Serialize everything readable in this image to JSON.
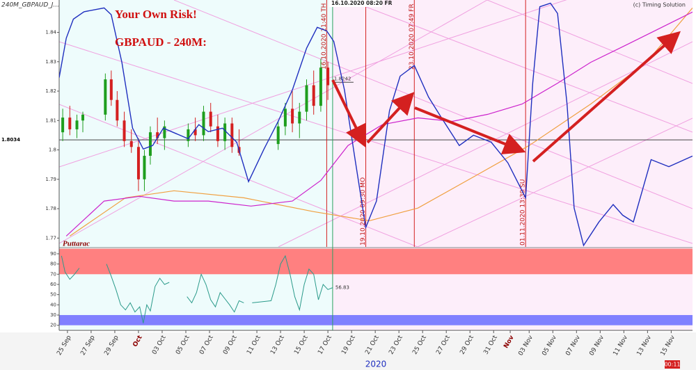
{
  "chart_data": {
    "type": "candlestick",
    "title": "240M_GBPAUD_J...",
    "cursor_label": "16.10.2020 08:20 FR",
    "cursor_x": 22.4,
    "copyright": "(c) Timing Solution",
    "notes": [
      "Your Own Risk!",
      "GBPAUD - 240M:",
      "Puttarac"
    ],
    "xlim": [
      -0.7,
      52.8
    ],
    "xticks": [
      {
        "value": 0,
        "label": "25 Sep"
      },
      {
        "value": 2,
        "label": "27 Sep"
      },
      {
        "value": 4,
        "label": "29 Sep"
      },
      {
        "value": 6,
        "label": "Oct"
      },
      {
        "value": 8,
        "label": "03 Oct"
      },
      {
        "value": 10,
        "label": "05 Oct"
      },
      {
        "value": 12,
        "label": "07 Oct"
      },
      {
        "value": 14,
        "label": "09 Oct"
      },
      {
        "value": 16,
        "label": "11 Oct"
      },
      {
        "value": 18,
        "label": "13 Oct"
      },
      {
        "value": 20,
        "label": "15 Oct"
      },
      {
        "value": 22,
        "label": "17 Oct"
      },
      {
        "value": 24,
        "label": "19 Oct"
      },
      {
        "value": 26,
        "label": "21 Oct"
      },
      {
        "value": 28,
        "label": "23 Oct"
      },
      {
        "value": 30,
        "label": "25 Oct"
      },
      {
        "value": 32,
        "label": "27 Oct"
      },
      {
        "value": 34,
        "label": "29 Oct"
      },
      {
        "value": 36,
        "label": "31 Oct"
      },
      {
        "value": 37.4,
        "label": "Nov"
      },
      {
        "value": 39,
        "label": "03 Nov"
      },
      {
        "value": 41,
        "label": "05 Nov"
      },
      {
        "value": 43,
        "label": "07 Nov"
      },
      {
        "value": 45,
        "label": "09 Nov"
      },
      {
        "value": 47,
        "label": "11 Nov"
      },
      {
        "value": 49,
        "label": "13 Nov"
      },
      {
        "value": 51,
        "label": "15 Nov"
      }
    ],
    "x_axis_year": "2020",
    "status_time": "00:11",
    "ylim": [
      1.767,
      1.851
    ],
    "yticks": [
      1.77,
      1.78,
      1.79,
      1.8,
      1.81,
      1.82,
      1.83,
      1.84
    ],
    "price_line": 1.8034,
    "price_marker": 1.8242,
    "candles": {
      "up_color": "#1e9e1e",
      "down_color": "#d42020",
      "x": [
        -0.4,
        0.2,
        0.8,
        1.3,
        3.2,
        3.7,
        4.2,
        4.8,
        5.4,
        6.0,
        6.5,
        7.0,
        7.6,
        8.2,
        10.2,
        10.8,
        11.5,
        12.1,
        12.7,
        13.3,
        13.9,
        14.5,
        17.8,
        18.4,
        19.0,
        19.6,
        20.2,
        20.8,
        21.4,
        22.0
      ],
      "open": [
        1.806,
        1.811,
        1.807,
        1.81,
        1.812,
        1.824,
        1.817,
        1.81,
        1.803,
        1.801,
        1.79,
        1.798,
        1.806,
        1.804,
        1.803,
        1.807,
        1.805,
        1.813,
        1.808,
        1.803,
        1.809,
        1.801,
        1.802,
        1.808,
        1.814,
        1.809,
        1.813,
        1.822,
        1.815,
        1.828
      ],
      "high": [
        1.814,
        1.815,
        1.812,
        1.813,
        1.826,
        1.827,
        1.82,
        1.813,
        1.807,
        1.804,
        1.8,
        1.808,
        1.811,
        1.81,
        1.809,
        1.811,
        1.815,
        1.816,
        1.812,
        1.811,
        1.811,
        1.807,
        1.81,
        1.816,
        1.82,
        1.816,
        1.824,
        1.827,
        1.831,
        1.83
      ],
      "low": [
        1.803,
        1.805,
        1.804,
        1.806,
        1.81,
        1.815,
        1.808,
        1.801,
        1.799,
        1.786,
        1.786,
        1.795,
        1.802,
        1.8,
        1.801,
        1.803,
        1.803,
        1.806,
        1.801,
        1.8,
        1.799,
        1.798,
        1.8,
        1.805,
        1.806,
        1.804,
        1.81,
        1.812,
        1.813,
        1.817
      ],
      "close": [
        1.811,
        1.807,
        1.81,
        1.812,
        1.824,
        1.817,
        1.81,
        1.803,
        1.801,
        1.79,
        1.798,
        1.806,
        1.804,
        1.808,
        1.807,
        1.805,
        1.813,
        1.808,
        1.803,
        1.809,
        1.801,
        1.799,
        1.808,
        1.814,
        1.809,
        1.813,
        1.822,
        1.815,
        1.828,
        1.822
      ]
    },
    "series": [
      {
        "color": "#1f2fbf",
        "x": [
          -0.7,
          -0.1,
          0.5,
          1.4,
          3.1,
          3.7,
          4.6,
          5.5,
          6.4,
          7.2,
          8.1,
          10.2,
          11.1,
          11.9,
          13.1,
          14.3,
          15.3,
          16.6,
          17.8,
          19.0,
          20.2,
          21.1,
          21.9,
          22.5,
          23.4,
          24.3,
          25.2,
          26.1,
          27.2,
          28.1,
          29.3,
          30.5,
          31.6,
          33.1,
          34.3,
          35.8,
          37.2,
          38.7,
          39.3,
          39.9,
          40.8,
          41.4,
          42.2,
          42.8,
          43.6,
          44.9,
          46.1,
          46.9,
          47.8,
          49.3,
          50.8,
          52.8
        ],
        "values": [
          1.8246,
          1.838,
          1.8445,
          1.847,
          1.8483,
          1.846,
          1.8298,
          1.8074,
          1.8003,
          1.8015,
          1.8074,
          1.8038,
          1.8086,
          1.8062,
          1.8074,
          1.8026,
          1.7892,
          1.8003,
          1.8097,
          1.8204,
          1.8346,
          1.8417,
          1.8405,
          1.8369,
          1.8204,
          1.7967,
          1.7736,
          1.7826,
          1.8133,
          1.8251,
          1.8287,
          1.818,
          1.8109,
          1.8015,
          1.805,
          1.8026,
          1.7956,
          1.7837,
          1.8227,
          1.8487,
          1.8499,
          1.8464,
          1.8156,
          1.7802,
          1.7675,
          1.7755,
          1.7814,
          1.7778,
          1.7755,
          1.7967,
          1.7943,
          1.7979
        ]
      },
      {
        "color": "#cc22cc",
        "x": [
          -0.1,
          3.1,
          6.1,
          9.0,
          11.9,
          15.5,
          19.0,
          21.4,
          23.7,
          26.6,
          29.6,
          32.5,
          35.5,
          38.4,
          41.4,
          44.2,
          47.2,
          50.2,
          52.8
        ],
        "values": [
          1.7707,
          1.7826,
          1.7842,
          1.7826,
          1.7826,
          1.7809,
          1.7826,
          1.7896,
          1.8015,
          1.8086,
          1.8109,
          1.8097,
          1.8121,
          1.8156,
          1.8227,
          1.8298,
          1.8357,
          1.8417,
          1.8469
        ]
      },
      {
        "color": "#f0a040",
        "x": [
          0.2,
          4.9,
          9.0,
          14.9,
          20.8,
          25.5,
          29.6,
          34.3,
          39.0,
          44.2,
          48.9,
          52.8
        ],
        "values": [
          1.7707,
          1.7837,
          1.7861,
          1.7837,
          1.779,
          1.7759,
          1.7802,
          1.7908,
          1.8015,
          1.8156,
          1.8298,
          1.8483
        ]
      }
    ],
    "annotations": [
      {
        "x": 21.9,
        "label": "16.10.2020  21:40 TH"
      },
      {
        "x": 25.2,
        "label": "19.10.2020  09:30 MO"
      },
      {
        "x": 29.3,
        "label": "23.10.2020  07:49 FR"
      },
      {
        "x": 38.7,
        "label": "01.11.2020  13:39 SU"
      }
    ],
    "oscillator": {
      "color": "#2a9a8a",
      "ylim": [
        15,
        95.4
      ],
      "yticks": [
        20,
        30,
        40,
        50,
        60,
        70,
        80,
        90
      ],
      "bands": [
        {
          "from": 70,
          "to": 95,
          "color": "#ff8080"
        },
        {
          "from": 20,
          "to": 30,
          "color": "#8080ff"
        }
      ],
      "last_value": 56.83,
      "x": [
        -0.5,
        -0.2,
        0.2,
        0.6,
        1.0,
        2.0,
        3.3,
        3.7,
        4.1,
        4.5,
        4.9,
        5.3,
        5.7,
        6.1,
        6.4,
        6.7,
        7.0,
        7.4,
        7.8,
        8.2,
        8.6,
        9.5,
        10.1,
        10.5,
        10.9,
        11.3,
        11.7,
        12.1,
        12.5,
        12.9,
        13.3,
        13.7,
        14.1,
        14.5,
        14.9,
        15.3,
        15.6,
        17.2,
        17.6,
        18.0,
        18.4,
        18.8,
        19.2,
        19.6,
        20.0,
        20.4,
        20.8,
        21.2,
        21.6,
        22.0,
        22.4
      ],
      "values": [
        88,
        72,
        65,
        70,
        76,
        null,
        80,
        68,
        55,
        40,
        35,
        42,
        33,
        38,
        22,
        40,
        34,
        58,
        66,
        60,
        62,
        null,
        48,
        42,
        52,
        70,
        60,
        45,
        38,
        52,
        46,
        40,
        33,
        44,
        42,
        null,
        42,
        44,
        60,
        80,
        88,
        70,
        48,
        35,
        60,
        75,
        70,
        45,
        60,
        55,
        56.83
      ]
    }
  }
}
